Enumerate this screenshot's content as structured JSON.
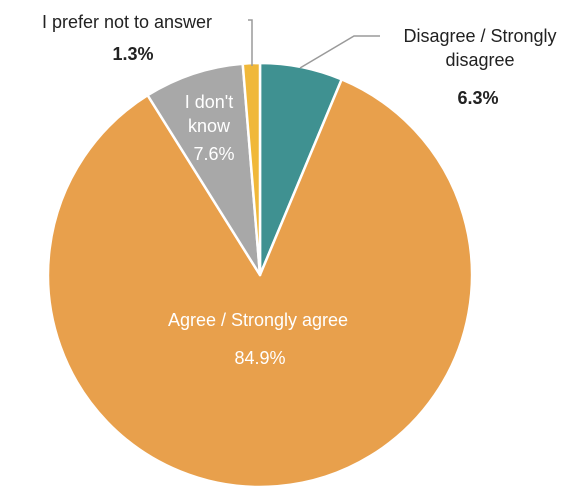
{
  "chart_data": {
    "type": "pie",
    "slices": [
      {
        "label": "Disagree / Strongly disagree",
        "value": 6.3,
        "value_label": "6.3%",
        "color": "#3f9191"
      },
      {
        "label": "Agree / Strongly agree",
        "value": 84.9,
        "value_label": "84.9%",
        "color": "#e8a04c"
      },
      {
        "label": "I don't know",
        "value": 7.6,
        "value_label": "7.6%",
        "color": "#a8a8a8"
      },
      {
        "label": "I prefer not to answer",
        "value": 1.3,
        "value_label": "1.3%",
        "color": "#f0b83a"
      }
    ],
    "legend": "none",
    "start": "top, clockwise"
  },
  "labels": {
    "disagree_line1": "Disagree / Strongly",
    "disagree_line2": "disagree",
    "dontknow_line1": "I don't",
    "dontknow_line2": "know"
  }
}
